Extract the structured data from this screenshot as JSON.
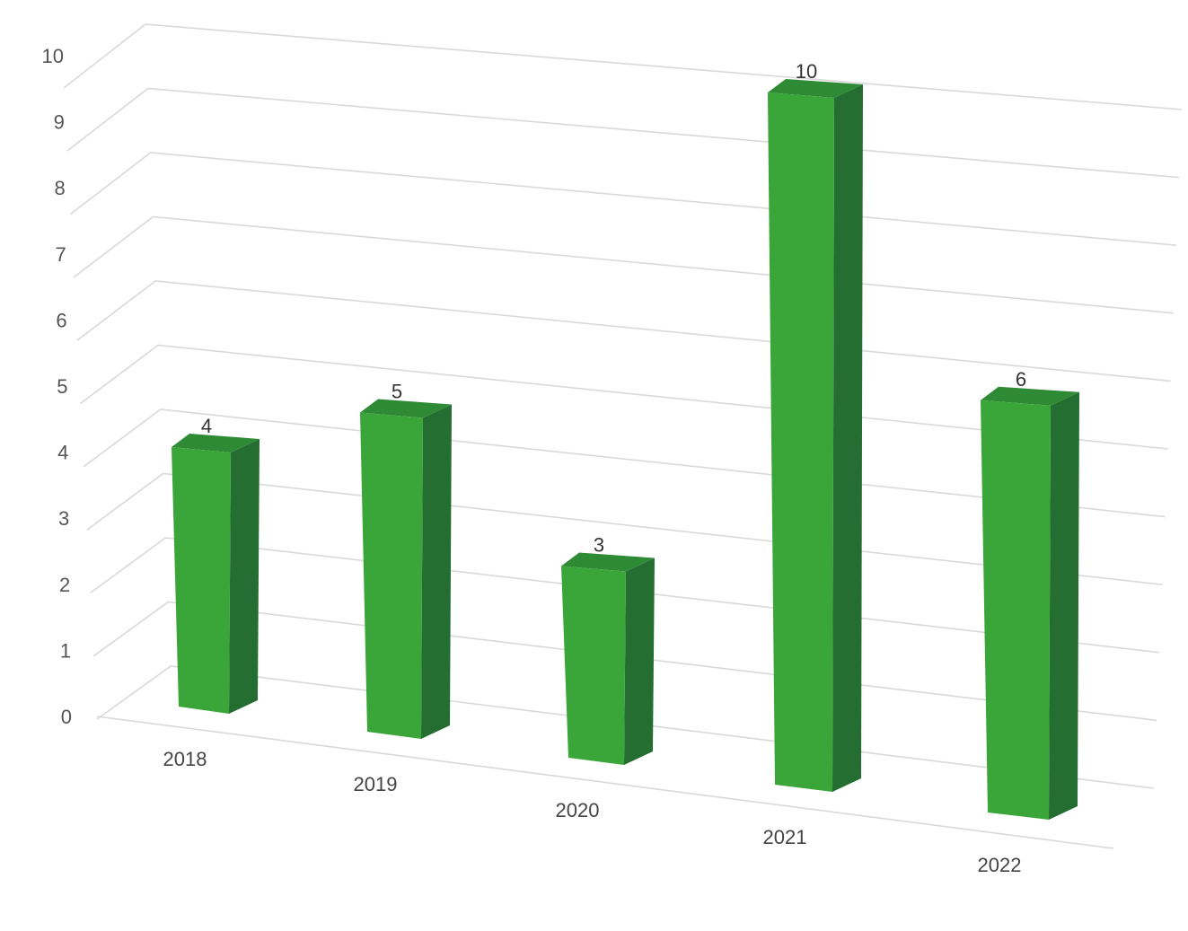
{
  "chart_data": {
    "type": "bar",
    "style": "3d-column",
    "categories": [
      "2018",
      "2019",
      "2020",
      "2021",
      "2022"
    ],
    "values": [
      4,
      5,
      3,
      10,
      6
    ],
    "data_labels": [
      "4",
      "5",
      "3",
      "10",
      "6"
    ],
    "ylim": [
      0,
      10
    ],
    "yticks": [
      "0",
      "1",
      "2",
      "3",
      "4",
      "5",
      "6",
      "7",
      "8",
      "9",
      "10"
    ],
    "title": "",
    "xlabel": "",
    "ylabel": "",
    "grid": true,
    "legend": "none",
    "colors": {
      "bar_front": "#3aa63a",
      "bar_side": "#256e31",
      "bar_top": "#2f8a36",
      "grid": "#d9d9d9"
    }
  }
}
